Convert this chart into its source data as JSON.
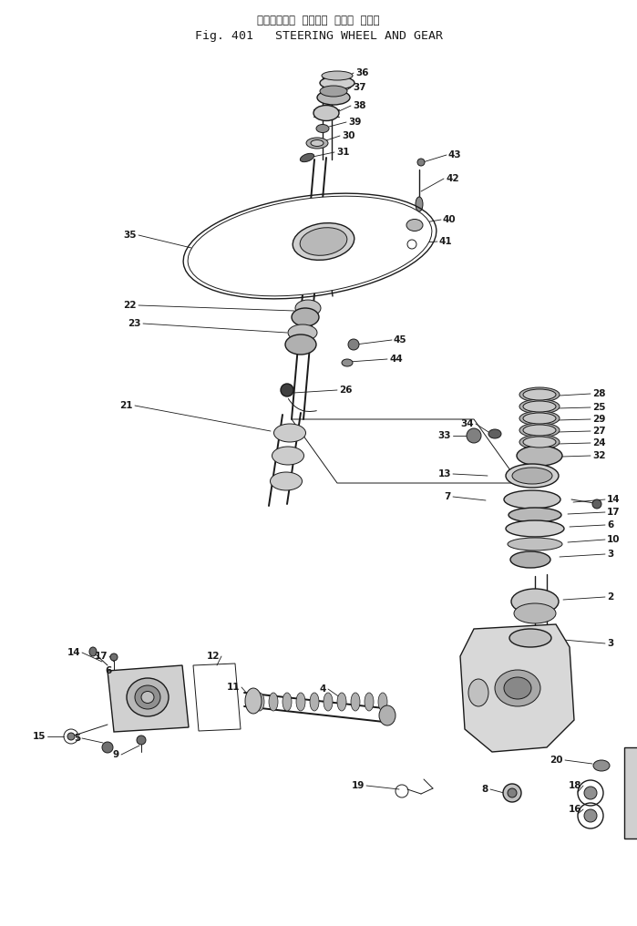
{
  "title_jp": "ステアリング  ホイール  および  ギャー",
  "title_en": "Fig. 401   STEERING WHEEL AND GEAR",
  "bg_color": "#ffffff",
  "line_color": "#1a1a1a",
  "text_color": "#1a1a1a",
  "fig_width": 6.99,
  "fig_height": 10.16,
  "title_jp_fontsize": 8.5,
  "title_en_fontsize": 9.5,
  "label_fontsize": 7.5
}
